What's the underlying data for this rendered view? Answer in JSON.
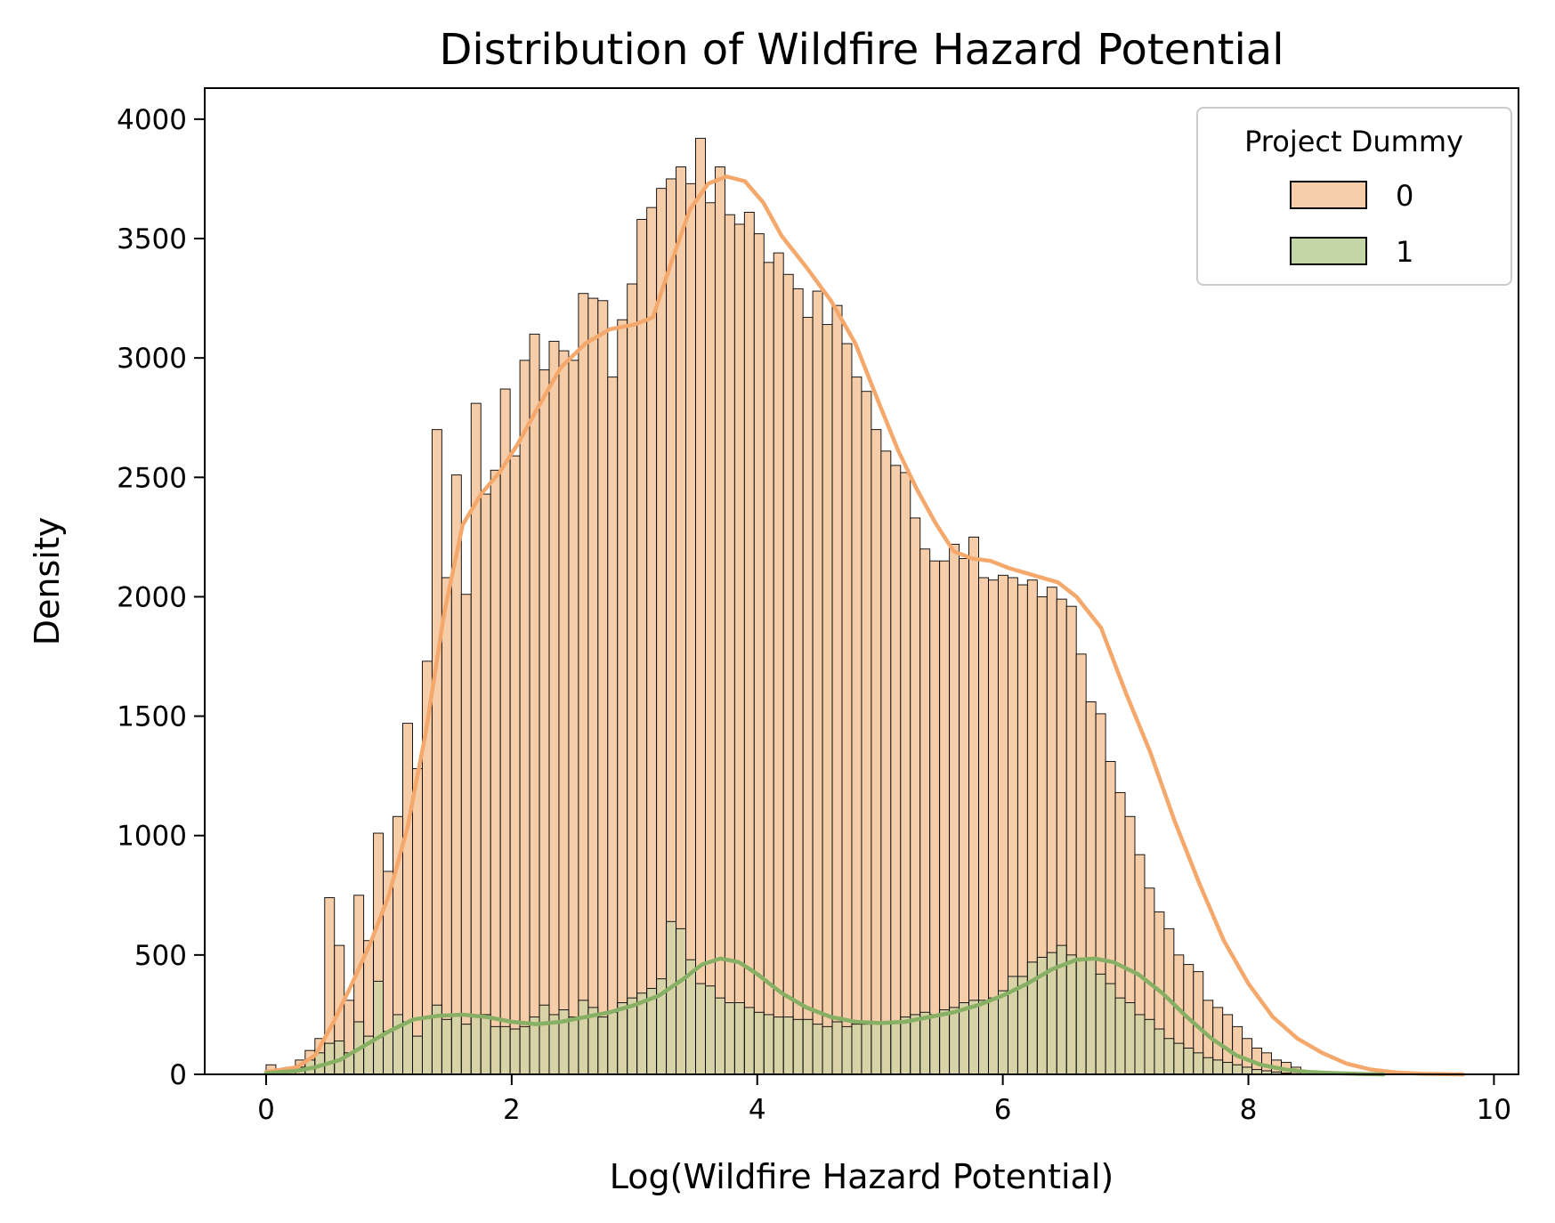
{
  "chart_data": {
    "type": "histogram",
    "title": "Distribution of Wildfire Hazard Potential",
    "xlabel": "Log(Wildfire Hazard Potential)",
    "ylabel": "Density",
    "xlim": [
      -0.5,
      10.2
    ],
    "ylim": [
      0,
      4130
    ],
    "xticks": [
      0,
      2,
      4,
      6,
      8,
      10
    ],
    "yticks": [
      0,
      500,
      1000,
      1500,
      2000,
      2500,
      3000,
      3500,
      4000
    ],
    "grid": false,
    "bin_start": 0.0,
    "bin_width": 0.0795,
    "legend": {
      "title": "Project Dummy",
      "placement": "top-right"
    },
    "series": [
      {
        "name": "0",
        "color": "#f4a86c",
        "fill": "#f6cda9",
        "values": [
          40,
          20,
          30,
          60,
          100,
          150,
          740,
          540,
          310,
          750,
          560,
          1010,
          850,
          1080,
          1470,
          1280,
          1730,
          2700,
          2080,
          2510,
          2010,
          2810,
          2430,
          2530,
          2870,
          2590,
          2990,
          3100,
          2950,
          3070,
          3030,
          2990,
          3270,
          3250,
          3240,
          2920,
          3160,
          3310,
          3580,
          3630,
          3710,
          3750,
          3800,
          3730,
          3920,
          3650,
          3800,
          3600,
          3560,
          3610,
          3520,
          3400,
          3440,
          3350,
          3290,
          3170,
          3280,
          3140,
          3220,
          3060,
          2920,
          2860,
          2700,
          2610,
          2550,
          2520,
          2330,
          2200,
          2150,
          2150,
          2220,
          2160,
          2250,
          2080,
          2070,
          2090,
          2080,
          2050,
          2070,
          2000,
          2040,
          1990,
          1960,
          1760,
          1560,
          1510,
          1310,
          1180,
          1080,
          920,
          780,
          680,
          610,
          500,
          460,
          430,
          310,
          280,
          250,
          200,
          150,
          110,
          90,
          60,
          50,
          30,
          15,
          10,
          5,
          3
        ]
      },
      {
        "name": "1",
        "color": "#87b064",
        "fill": "#c4d6a6",
        "values": [
          5,
          8,
          12,
          30,
          60,
          90,
          130,
          140,
          90,
          220,
          160,
          390,
          180,
          250,
          220,
          160,
          240,
          290,
          230,
          250,
          210,
          240,
          250,
          200,
          200,
          190,
          200,
          240,
          290,
          250,
          270,
          240,
          310,
          280,
          240,
          260,
          300,
          320,
          340,
          360,
          400,
          640,
          610,
          480,
          380,
          370,
          320,
          300,
          300,
          280,
          260,
          250,
          240,
          240,
          230,
          230,
          210,
          200,
          220,
          200,
          210,
          210,
          220,
          220,
          220,
          240,
          250,
          260,
          250,
          270,
          280,
          300,
          310,
          310,
          320,
          350,
          410,
          410,
          470,
          490,
          510,
          540,
          500,
          480,
          480,
          420,
          380,
          320,
          300,
          250,
          230,
          190,
          150,
          130,
          110,
          90,
          70,
          60,
          50,
          40,
          30,
          20,
          15,
          10,
          5,
          3,
          2,
          1,
          1,
          0
        ]
      }
    ],
    "kde": [
      {
        "name": "0",
        "x": [
          0,
          0.25,
          0.4,
          0.55,
          0.7,
          0.85,
          1.0,
          1.15,
          1.3,
          1.45,
          1.6,
          1.75,
          1.9,
          2.05,
          2.2,
          2.4,
          2.6,
          2.8,
          3.0,
          3.15,
          3.3,
          3.45,
          3.6,
          3.75,
          3.9,
          4.05,
          4.2,
          4.4,
          4.6,
          4.8,
          5.0,
          5.15,
          5.3,
          5.45,
          5.6,
          5.75,
          5.9,
          6.05,
          6.25,
          6.45,
          6.6,
          6.8,
          7.0,
          7.2,
          7.4,
          7.6,
          7.8,
          8.0,
          8.2,
          8.4,
          8.6,
          8.8,
          9.0,
          9.2,
          9.4,
          9.6,
          9.75
        ],
        "y": [
          10,
          30,
          80,
          220,
          380,
          550,
          750,
          1030,
          1430,
          1930,
          2300,
          2430,
          2520,
          2640,
          2780,
          2960,
          3060,
          3120,
          3140,
          3170,
          3400,
          3620,
          3730,
          3760,
          3740,
          3650,
          3510,
          3380,
          3240,
          3060,
          2800,
          2610,
          2450,
          2310,
          2190,
          2160,
          2150,
          2120,
          2090,
          2060,
          2000,
          1870,
          1600,
          1350,
          1060,
          800,
          560,
          380,
          240,
          150,
          90,
          45,
          20,
          8,
          3,
          1,
          0
        ]
      },
      {
        "name": "1",
        "x": [
          0,
          0.25,
          0.4,
          0.6,
          0.8,
          1.0,
          1.2,
          1.4,
          1.6,
          1.8,
          2.0,
          2.2,
          2.4,
          2.6,
          2.8,
          3.0,
          3.2,
          3.4,
          3.55,
          3.7,
          3.85,
          4.0,
          4.2,
          4.4,
          4.6,
          4.8,
          5.0,
          5.2,
          5.4,
          5.6,
          5.8,
          6.0,
          6.2,
          6.4,
          6.6,
          6.75,
          6.9,
          7.1,
          7.3,
          7.5,
          7.7,
          7.9,
          8.1,
          8.3,
          8.5,
          8.7,
          8.9,
          9.1
        ],
        "y": [
          5,
          15,
          30,
          60,
          120,
          180,
          230,
          245,
          250,
          240,
          220,
          210,
          220,
          240,
          260,
          290,
          330,
          400,
          460,
          485,
          470,
          420,
          340,
          280,
          240,
          220,
          215,
          220,
          240,
          260,
          290,
          330,
          380,
          440,
          480,
          485,
          470,
          420,
          340,
          240,
          150,
          80,
          40,
          20,
          10,
          5,
          2,
          0
        ]
      }
    ]
  }
}
